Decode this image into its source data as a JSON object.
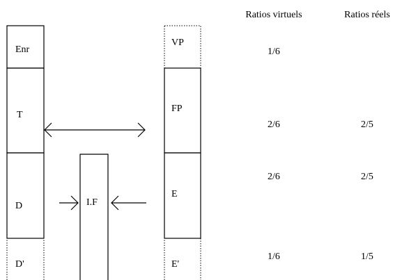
{
  "headers": [
    "Ratios virtuels",
    "Ratios réels"
  ],
  "left_column": [
    "Enr",
    "T",
    "D",
    "D'"
  ],
  "middle_box": "I.F",
  "right_column": [
    "VP",
    "FP",
    "E",
    "E'"
  ],
  "rows": [
    {
      "virtual": "1/6"
    },
    {
      "virtual": "2/6",
      "real": "2/5"
    },
    {
      "virtual": "2/6",
      "real": "2/5"
    },
    {
      "virtual": "1/6",
      "real": "1/5"
    }
  ]
}
